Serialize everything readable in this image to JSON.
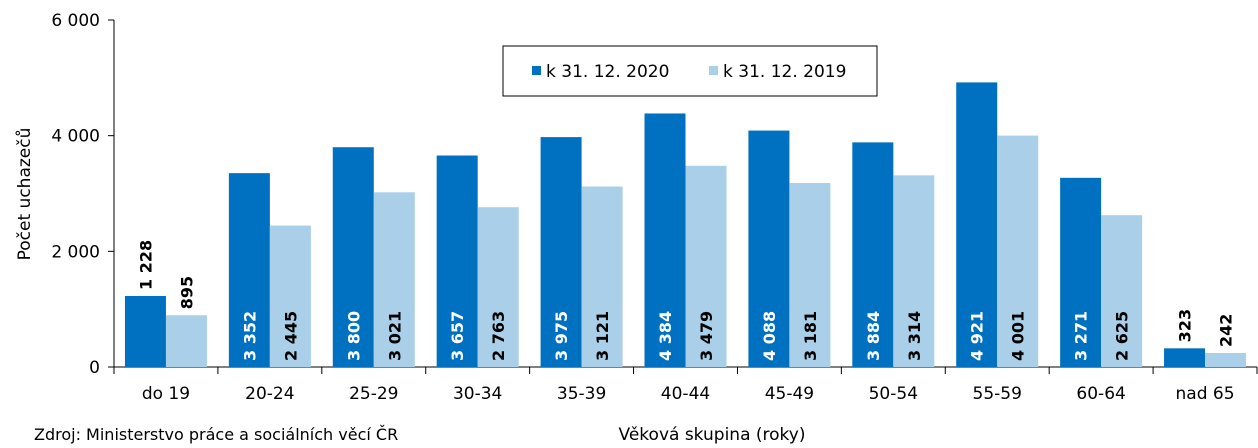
{
  "chart_data": {
    "type": "bar",
    "categories": [
      "do 19",
      "20-24",
      "25-29",
      "30-34",
      "35-39",
      "40-44",
      "45-49",
      "50-54",
      "55-59",
      "60-64",
      "nad 65"
    ],
    "series": [
      {
        "name": "k 31. 12. 2020",
        "values": [
          1228,
          3352,
          3800,
          3657,
          3975,
          4384,
          4088,
          3884,
          4921,
          3271,
          323
        ],
        "labels": [
          "1 228",
          "3 352",
          "3 800",
          "3 657",
          "3 975",
          "4 384",
          "4 088",
          "3 884",
          "4 921",
          "3 271",
          "323"
        ]
      },
      {
        "name": "k 31. 12. 2019",
        "values": [
          895,
          2445,
          3021,
          2763,
          3121,
          3479,
          3181,
          3314,
          4001,
          2625,
          242
        ],
        "labels": [
          "895",
          "2 445",
          "3 021",
          "2 763",
          "3 121",
          "3 479",
          "3 181",
          "3 314",
          "4 001",
          "2 625",
          "242"
        ]
      }
    ],
    "colors": [
      "#0070c0",
      "#a9cfe9"
    ],
    "ylabel": "Počet uchazečů",
    "xlabel": "Věková skupina (roky)",
    "ylim": [
      0,
      6000
    ],
    "yticks": [
      0,
      2000,
      4000,
      6000
    ],
    "ytick_labels": [
      "0",
      "2 000",
      "4 000",
      "6 000"
    ],
    "grid": false,
    "legend_position": "top-center"
  },
  "source": "Zdroj: Ministerstvo práce a sociálních věcí ČR"
}
